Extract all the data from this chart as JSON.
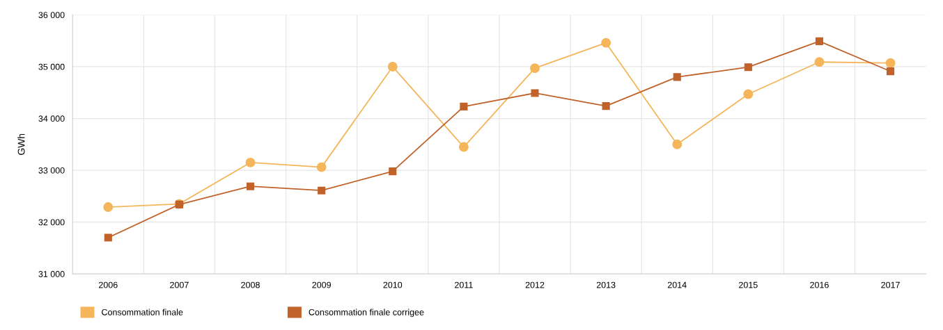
{
  "chart_data": {
    "type": "line",
    "ylabel": "GWh",
    "categories": [
      "2006",
      "2007",
      "2008",
      "2009",
      "2010",
      "2011",
      "2012",
      "2013",
      "2014",
      "2015",
      "2016",
      "2017"
    ],
    "series": [
      {
        "name": "Consommation finale",
        "color": "#f5b55a",
        "marker": "circle",
        "values": [
          32290,
          32350,
          33150,
          33060,
          35000,
          33450,
          34970,
          35460,
          33500,
          34470,
          35090,
          35070
        ]
      },
      {
        "name": "Consommation finale corrigee",
        "color": "#c0622a",
        "marker": "square",
        "values": [
          31700,
          32340,
          32690,
          32610,
          32980,
          34230,
          34490,
          34240,
          34800,
          34990,
          35490,
          34910
        ]
      }
    ],
    "ylim": [
      31000,
      36000
    ],
    "yticks": [
      {
        "value": 31000,
        "label": "31 000"
      },
      {
        "value": 32000,
        "label": "32 000"
      },
      {
        "value": 33000,
        "label": "33 000"
      },
      {
        "value": 34000,
        "label": "34 000"
      },
      {
        "value": 35000,
        "label": "35 000"
      },
      {
        "value": 36000,
        "label": "36 000"
      }
    ],
    "grid": true,
    "legend": "bottom left",
    "line_style": "solid"
  }
}
